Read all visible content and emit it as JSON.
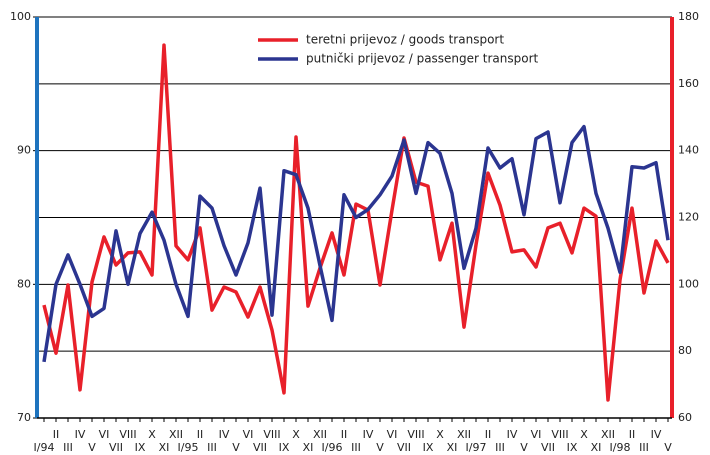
{
  "chart_data": {
    "type": "line",
    "categories": [
      "I/94",
      "II",
      "III",
      "IV",
      "V",
      "VI",
      "VII",
      "VIII",
      "IX",
      "X",
      "XI",
      "XII",
      "I/95",
      "II",
      "III",
      "IV",
      "V",
      "VI",
      "VII",
      "VIII",
      "IX",
      "X",
      "XI",
      "XII",
      "I/96",
      "II",
      "III",
      "IV",
      "V",
      "VI",
      "VII",
      "VIII",
      "IX",
      "X",
      "XI",
      "XII",
      "I/97",
      "II",
      "III",
      "IV",
      "V",
      "VI",
      "VII",
      "VIII",
      "IX",
      "X",
      "XI",
      "XII",
      "I/98",
      "II",
      "III",
      "IV",
      "V"
    ],
    "series": [
      {
        "name": "teretni prijevoz / goods transport",
        "color": "#e8202a",
        "axis": "y2",
        "values": [
          93.8,
          79.4,
          99.8,
          68.4,
          100.7,
          114.2,
          105.8,
          109.4,
          109.7,
          102.8,
          171.6,
          111.5,
          107.3,
          116.9,
          92.3,
          99.2,
          97.7,
          90.2,
          99.2,
          86.3,
          67.5,
          144.1,
          93.5,
          104.9,
          115.4,
          102.8,
          124,
          122.2,
          99.8,
          122.2,
          143.8,
          130.6,
          129.4,
          107.3,
          118.3,
          87.2,
          111.8,
          133.3,
          123.7,
          109.7,
          110.3,
          105.2,
          116.9,
          118.3,
          109.4,
          122.8,
          120.4,
          65.4,
          101.3,
          122.8,
          97.4,
          113,
          106.4
        ]
      },
      {
        "name": "putnički prijevoz / passenger transport",
        "color": "#2b3590",
        "values": [
          74.2,
          80,
          82.2,
          80,
          77.6,
          78.2,
          84,
          80,
          83.8,
          85.4,
          83.3,
          80,
          77.6,
          86.6,
          85.7,
          82.9,
          80.7,
          83.1,
          87.2,
          77.7,
          88.5,
          88.2,
          85.7,
          81.4,
          77.3,
          86.7,
          85,
          85.6,
          86.7,
          88.1,
          90.8,
          86.8,
          90.6,
          89.8,
          86.8,
          81.2,
          84.2,
          90.2,
          88.7,
          89.4,
          85.2,
          90.9,
          91.4,
          86.1,
          90.6,
          91.8,
          86.8,
          84.2,
          80.9,
          88.8,
          88.7,
          89.1,
          83.3
        ]
      }
    ],
    "ylim": [
      70,
      100
    ],
    "yticks": [
      70,
      80,
      90,
      100
    ],
    "y2lim": [
      60,
      180
    ],
    "y2ticks": [
      60,
      80,
      100,
      120,
      140,
      160,
      180
    ],
    "grid": true,
    "legend": "top"
  }
}
